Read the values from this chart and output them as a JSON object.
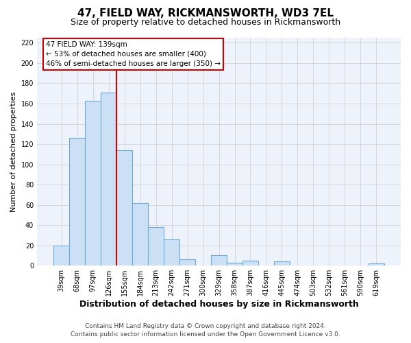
{
  "title": "47, FIELD WAY, RICKMANSWORTH, WD3 7EL",
  "subtitle": "Size of property relative to detached houses in Rickmansworth",
  "xlabel": "Distribution of detached houses by size in Rickmansworth",
  "ylabel": "Number of detached properties",
  "categories": [
    "39sqm",
    "68sqm",
    "97sqm",
    "126sqm",
    "155sqm",
    "184sqm",
    "213sqm",
    "242sqm",
    "271sqm",
    "300sqm",
    "329sqm",
    "358sqm",
    "387sqm",
    "416sqm",
    "445sqm",
    "474sqm",
    "503sqm",
    "532sqm",
    "561sqm",
    "590sqm",
    "619sqm"
  ],
  "values": [
    20,
    126,
    163,
    171,
    114,
    62,
    38,
    26,
    6,
    0,
    10,
    3,
    5,
    0,
    4,
    0,
    0,
    0,
    0,
    0,
    2
  ],
  "bar_color": "#cce0f5",
  "bar_edge_color": "#6aaad4",
  "bar_linewidth": 0.8,
  "property_label": "47 FIELD WAY: 139sqm",
  "annotation_line1": "← 53% of detached houses are smaller (400)",
  "annotation_line2": "46% of semi-detached houses are larger (350) →",
  "annotation_box_color": "#ffffff",
  "annotation_box_edge": "#cc0000",
  "vline_color": "#cc0000",
  "vline_x": 3.5,
  "ylim": [
    0,
    225
  ],
  "yticks": [
    0,
    20,
    40,
    60,
    80,
    100,
    120,
    140,
    160,
    180,
    200,
    220
  ],
  "grid_color": "#cccccc",
  "background_color": "#edf2fb",
  "footer1": "Contains HM Land Registry data © Crown copyright and database right 2024.",
  "footer2": "Contains public sector information licensed under the Open Government Licence v3.0.",
  "title_fontsize": 11,
  "subtitle_fontsize": 9,
  "xlabel_fontsize": 9,
  "ylabel_fontsize": 8,
  "tick_fontsize": 7,
  "annot_fontsize": 7.5,
  "footer_fontsize": 6.5
}
